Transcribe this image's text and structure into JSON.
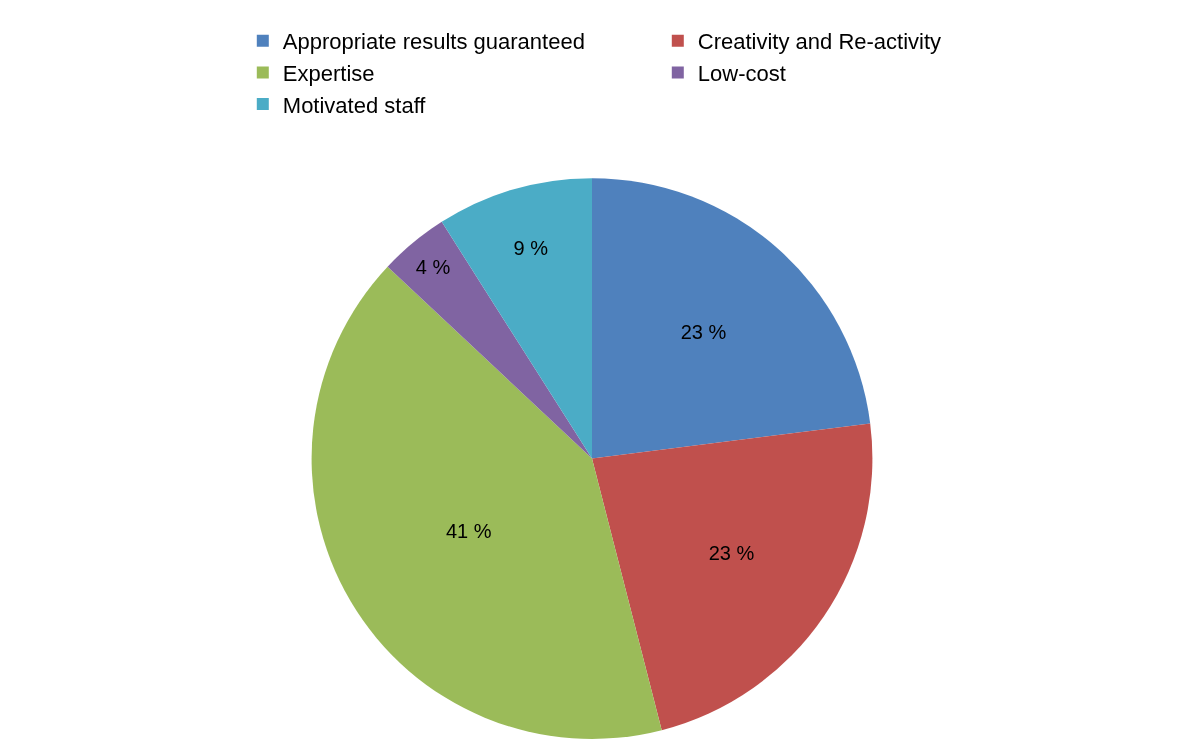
{
  "chart_data": {
    "type": "pie",
    "categories": [
      "Appropriate results guaranteed",
      "Creativity and Re-activity",
      "Expertise",
      "Low-cost",
      "Motivated staff"
    ],
    "values": [
      23,
      23,
      41,
      4,
      9
    ],
    "value_labels": [
      "23 %",
      "23 %",
      "41 %",
      "4 %",
      "9 %"
    ],
    "colors": [
      "#4f81bd",
      "#c0504d",
      "#9bbb59",
      "#8064a2",
      "#4bacc6"
    ],
    "legend": "top"
  }
}
